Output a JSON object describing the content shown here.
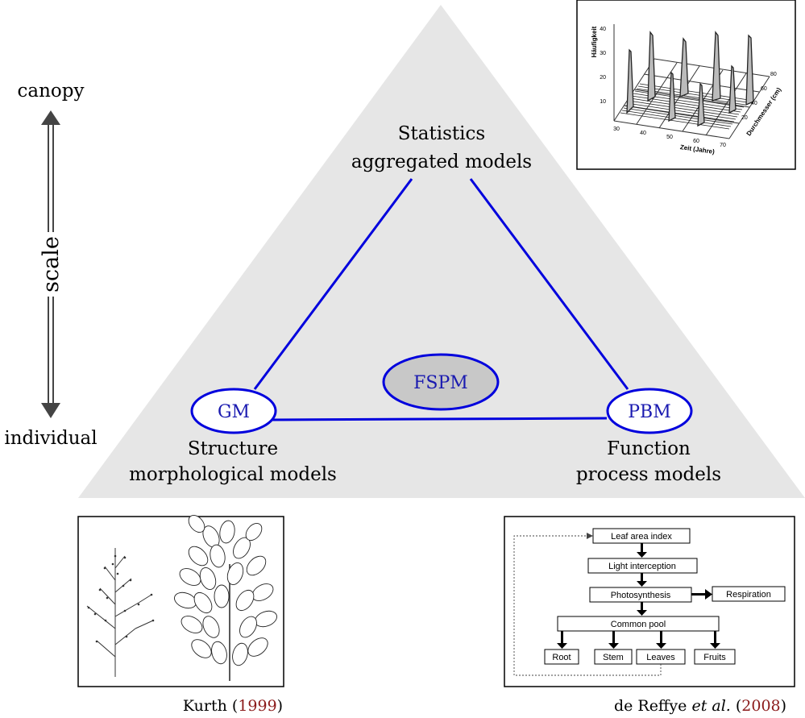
{
  "scale": {
    "top": "canopy",
    "bottom": "individual",
    "label": "scale"
  },
  "triangle": {
    "top_line1": "Statistics",
    "top_line2": "aggregated models",
    "left_node": "GM",
    "right_node": "PBM",
    "center_node": "FSPM",
    "left_line1": "Structure",
    "left_line2": "morphological models",
    "right_line1": "Function",
    "right_line2": "process models"
  },
  "colors": {
    "triangle_fill": "#e6e6e6",
    "edge": "#0000dd",
    "node_text": "#1a1ab0",
    "center_fill": "#c8c8c8",
    "citation_year": "#8b1a1a",
    "arrow": "#444444"
  },
  "stat_chart": {
    "ylabel": "Häufigkeit",
    "xlabel": "Zeit (Jahre)",
    "zlabel": "Durchmesser (cm)",
    "yticks": [
      "40",
      "30",
      "20",
      "10"
    ],
    "xticks": [
      "30",
      "40",
      "50",
      "60",
      "70"
    ],
    "zticks": [
      "20",
      "40",
      "60",
      "80"
    ]
  },
  "flow": {
    "leaf_area_index": "Leaf area index",
    "light_interception": "Light interception",
    "photosynthesis": "Photosynthesis",
    "respiration": "Respiration",
    "common_pool": "Common pool",
    "root": "Root",
    "stem": "Stem",
    "leaves": "Leaves",
    "fruits": "Fruits"
  },
  "citations": {
    "left_author": "Kurth (",
    "left_year": "1999",
    "left_close": ")",
    "right_author": "de Reffye ",
    "right_etal": "et al.",
    "right_open": " (",
    "right_year": "2008",
    "right_close": ")"
  }
}
